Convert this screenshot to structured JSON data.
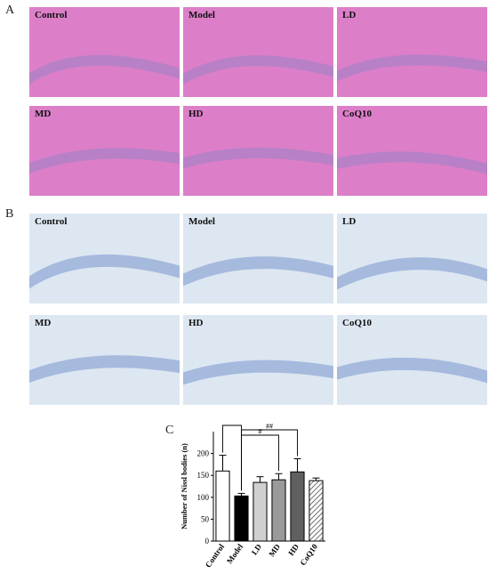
{
  "panels": {
    "a_label": "A",
    "b_label": "B",
    "c_label": "C",
    "he_labels": [
      "Control",
      "Model",
      "LD",
      "MD",
      "HD",
      "CoQ10"
    ],
    "nissl_labels": [
      "Control",
      "Model",
      "LD",
      "MD",
      "HD",
      "CoQ10"
    ]
  },
  "colors": {
    "he_background": "#dc7fc8",
    "he_band": "#9b82c6",
    "nissl_background": "#dde7f1",
    "nissl_band": "#8fa6d6"
  },
  "chart_data": {
    "type": "bar",
    "categories": [
      "Control",
      "Model",
      "LD",
      "MD",
      "HD",
      "CoQ10"
    ],
    "values": [
      160,
      103,
      134,
      140,
      158,
      138
    ],
    "errors": [
      36,
      6,
      13,
      14,
      30,
      6
    ],
    "fills": [
      "white",
      "black",
      "lightgray",
      "gray",
      "darkgray",
      "hatched"
    ],
    "ylabel": "Number of Nissl bodies (n)",
    "yticks": [
      0,
      50,
      100,
      150,
      200
    ],
    "ylim": [
      0,
      250
    ],
    "significance": [
      {
        "from": "Control",
        "to": "Model",
        "label": "**"
      },
      {
        "from": "Model",
        "to": "MD",
        "label": "#"
      },
      {
        "from": "Model",
        "to": "HD",
        "label": "##"
      }
    ]
  }
}
